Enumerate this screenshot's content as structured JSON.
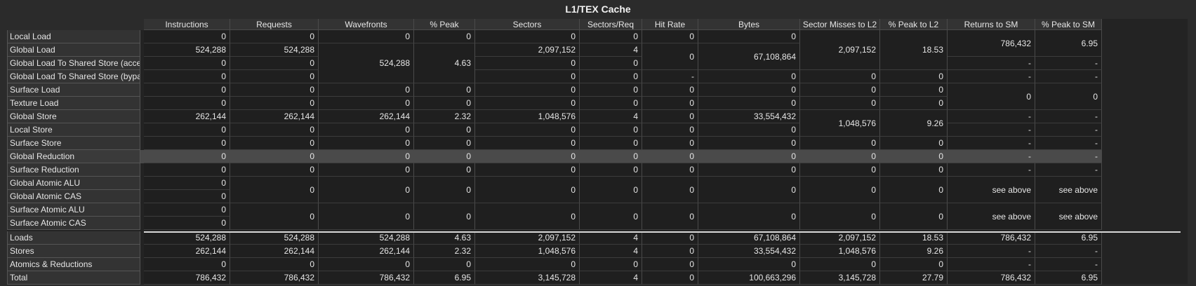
{
  "title": "L1/TEX Cache",
  "headers": [
    "Instructions",
    "Requests",
    "Wavefronts",
    "% Peak",
    "Sectors",
    "Sectors/Req",
    "Hit Rate",
    "Bytes",
    "Sector Misses to L2",
    "% Peak to L2",
    "Returns to SM",
    "% Peak to SM"
  ],
  "row_labels": [
    "Local Load",
    "Global Load",
    "Global Load To Shared Store (access)",
    "Global Load To Shared Store (bypass)",
    "Surface Load",
    "Texture Load",
    "Global Store",
    "Local Store",
    "Surface Store",
    "Global Reduction",
    "Surface Reduction",
    "Global Atomic ALU",
    "Global Atomic CAS",
    "Surface Atomic ALU",
    "Surface Atomic CAS",
    "Loads",
    "Stores",
    "Atomics & Reductions",
    "Total"
  ],
  "cells": [
    {
      "c": 0,
      "r": 0,
      "s": 1,
      "v": "0"
    },
    {
      "c": 0,
      "r": 1,
      "s": 1,
      "v": "524,288"
    },
    {
      "c": 0,
      "r": 2,
      "s": 1,
      "v": "0"
    },
    {
      "c": 0,
      "r": 3,
      "s": 1,
      "v": "0"
    },
    {
      "c": 0,
      "r": 4,
      "s": 1,
      "v": "0"
    },
    {
      "c": 0,
      "r": 5,
      "s": 1,
      "v": "0"
    },
    {
      "c": 0,
      "r": 6,
      "s": 1,
      "v": "262,144"
    },
    {
      "c": 0,
      "r": 7,
      "s": 1,
      "v": "0"
    },
    {
      "c": 0,
      "r": 8,
      "s": 1,
      "v": "0"
    },
    {
      "c": 0,
      "r": 9,
      "s": 1,
      "v": "0"
    },
    {
      "c": 0,
      "r": 10,
      "s": 1,
      "v": "0"
    },
    {
      "c": 0,
      "r": 11,
      "s": 1,
      "v": "0"
    },
    {
      "c": 0,
      "r": 12,
      "s": 1,
      "v": "0"
    },
    {
      "c": 0,
      "r": 13,
      "s": 1,
      "v": "0"
    },
    {
      "c": 0,
      "r": 14,
      "s": 1,
      "v": "0"
    },
    {
      "c": 0,
      "r": 15,
      "s": 1,
      "v": "524,288"
    },
    {
      "c": 0,
      "r": 16,
      "s": 1,
      "v": "262,144"
    },
    {
      "c": 0,
      "r": 17,
      "s": 1,
      "v": "0"
    },
    {
      "c": 0,
      "r": 18,
      "s": 1,
      "v": "786,432"
    },
    {
      "c": 1,
      "r": 0,
      "s": 1,
      "v": "0"
    },
    {
      "c": 1,
      "r": 1,
      "s": 1,
      "v": "524,288"
    },
    {
      "c": 1,
      "r": 2,
      "s": 1,
      "v": "0"
    },
    {
      "c": 1,
      "r": 3,
      "s": 1,
      "v": "0"
    },
    {
      "c": 1,
      "r": 4,
      "s": 1,
      "v": "0"
    },
    {
      "c": 1,
      "r": 5,
      "s": 1,
      "v": "0"
    },
    {
      "c": 1,
      "r": 6,
      "s": 1,
      "v": "262,144"
    },
    {
      "c": 1,
      "r": 7,
      "s": 1,
      "v": "0"
    },
    {
      "c": 1,
      "r": 8,
      "s": 1,
      "v": "0"
    },
    {
      "c": 1,
      "r": 9,
      "s": 1,
      "v": "0"
    },
    {
      "c": 1,
      "r": 10,
      "s": 1,
      "v": "0"
    },
    {
      "c": 1,
      "r": 11,
      "s": 2,
      "v": "0"
    },
    {
      "c": 1,
      "r": 13,
      "s": 2,
      "v": "0"
    },
    {
      "c": 1,
      "r": 15,
      "s": 1,
      "v": "524,288"
    },
    {
      "c": 1,
      "r": 16,
      "s": 1,
      "v": "262,144"
    },
    {
      "c": 1,
      "r": 17,
      "s": 1,
      "v": "0"
    },
    {
      "c": 1,
      "r": 18,
      "s": 1,
      "v": "786,432"
    },
    {
      "c": 2,
      "r": 0,
      "s": 1,
      "v": "0"
    },
    {
      "c": 2,
      "r": 1,
      "s": 3,
      "v": "524,288"
    },
    {
      "c": 2,
      "r": 4,
      "s": 1,
      "v": "0"
    },
    {
      "c": 2,
      "r": 5,
      "s": 1,
      "v": "0"
    },
    {
      "c": 2,
      "r": 6,
      "s": 1,
      "v": "262,144"
    },
    {
      "c": 2,
      "r": 7,
      "s": 1,
      "v": "0"
    },
    {
      "c": 2,
      "r": 8,
      "s": 1,
      "v": "0"
    },
    {
      "c": 2,
      "r": 9,
      "s": 1,
      "v": "0"
    },
    {
      "c": 2,
      "r": 10,
      "s": 1,
      "v": "0"
    },
    {
      "c": 2,
      "r": 11,
      "s": 2,
      "v": "0"
    },
    {
      "c": 2,
      "r": 13,
      "s": 2,
      "v": "0"
    },
    {
      "c": 2,
      "r": 15,
      "s": 1,
      "v": "524,288"
    },
    {
      "c": 2,
      "r": 16,
      "s": 1,
      "v": "262,144"
    },
    {
      "c": 2,
      "r": 17,
      "s": 1,
      "v": "0"
    },
    {
      "c": 2,
      "r": 18,
      "s": 1,
      "v": "786,432"
    },
    {
      "c": 3,
      "r": 0,
      "s": 1,
      "v": "0"
    },
    {
      "c": 3,
      "r": 1,
      "s": 3,
      "v": "4.63"
    },
    {
      "c": 3,
      "r": 4,
      "s": 1,
      "v": "0"
    },
    {
      "c": 3,
      "r": 5,
      "s": 1,
      "v": "0"
    },
    {
      "c": 3,
      "r": 6,
      "s": 1,
      "v": "2.32"
    },
    {
      "c": 3,
      "r": 7,
      "s": 1,
      "v": "0"
    },
    {
      "c": 3,
      "r": 8,
      "s": 1,
      "v": "0"
    },
    {
      "c": 3,
      "r": 9,
      "s": 1,
      "v": "0"
    },
    {
      "c": 3,
      "r": 10,
      "s": 1,
      "v": "0"
    },
    {
      "c": 3,
      "r": 11,
      "s": 2,
      "v": "0"
    },
    {
      "c": 3,
      "r": 13,
      "s": 2,
      "v": "0"
    },
    {
      "c": 3,
      "r": 15,
      "s": 1,
      "v": "4.63"
    },
    {
      "c": 3,
      "r": 16,
      "s": 1,
      "v": "2.32"
    },
    {
      "c": 3,
      "r": 17,
      "s": 1,
      "v": "0"
    },
    {
      "c": 3,
      "r": 18,
      "s": 1,
      "v": "6.95"
    },
    {
      "c": 4,
      "r": 0,
      "s": 1,
      "v": "0"
    },
    {
      "c": 4,
      "r": 1,
      "s": 1,
      "v": "2,097,152"
    },
    {
      "c": 4,
      "r": 2,
      "s": 1,
      "v": "0"
    },
    {
      "c": 4,
      "r": 3,
      "s": 1,
      "v": "0"
    },
    {
      "c": 4,
      "r": 4,
      "s": 1,
      "v": "0"
    },
    {
      "c": 4,
      "r": 5,
      "s": 1,
      "v": "0"
    },
    {
      "c": 4,
      "r": 6,
      "s": 1,
      "v": "1,048,576"
    },
    {
      "c": 4,
      "r": 7,
      "s": 1,
      "v": "0"
    },
    {
      "c": 4,
      "r": 8,
      "s": 1,
      "v": "0"
    },
    {
      "c": 4,
      "r": 9,
      "s": 1,
      "v": "0"
    },
    {
      "c": 4,
      "r": 10,
      "s": 1,
      "v": "0"
    },
    {
      "c": 4,
      "r": 11,
      "s": 2,
      "v": "0"
    },
    {
      "c": 4,
      "r": 13,
      "s": 2,
      "v": "0"
    },
    {
      "c": 4,
      "r": 15,
      "s": 1,
      "v": "2,097,152"
    },
    {
      "c": 4,
      "r": 16,
      "s": 1,
      "v": "1,048,576"
    },
    {
      "c": 4,
      "r": 17,
      "s": 1,
      "v": "0"
    },
    {
      "c": 4,
      "r": 18,
      "s": 1,
      "v": "3,145,728"
    },
    {
      "c": 5,
      "r": 0,
      "s": 1,
      "v": "0"
    },
    {
      "c": 5,
      "r": 1,
      "s": 1,
      "v": "4"
    },
    {
      "c": 5,
      "r": 2,
      "s": 1,
      "v": "0"
    },
    {
      "c": 5,
      "r": 3,
      "s": 1,
      "v": "0"
    },
    {
      "c": 5,
      "r": 4,
      "s": 1,
      "v": "0"
    },
    {
      "c": 5,
      "r": 5,
      "s": 1,
      "v": "0"
    },
    {
      "c": 5,
      "r": 6,
      "s": 1,
      "v": "4"
    },
    {
      "c": 5,
      "r": 7,
      "s": 1,
      "v": "0"
    },
    {
      "c": 5,
      "r": 8,
      "s": 1,
      "v": "0"
    },
    {
      "c": 5,
      "r": 9,
      "s": 1,
      "v": "0"
    },
    {
      "c": 5,
      "r": 10,
      "s": 1,
      "v": "0"
    },
    {
      "c": 5,
      "r": 11,
      "s": 2,
      "v": "0"
    },
    {
      "c": 5,
      "r": 13,
      "s": 2,
      "v": "0"
    },
    {
      "c": 5,
      "r": 15,
      "s": 1,
      "v": "4"
    },
    {
      "c": 5,
      "r": 16,
      "s": 1,
      "v": "4"
    },
    {
      "c": 5,
      "r": 17,
      "s": 1,
      "v": "0"
    },
    {
      "c": 5,
      "r": 18,
      "s": 1,
      "v": "4"
    },
    {
      "c": 6,
      "r": 0,
      "s": 1,
      "v": "0"
    },
    {
      "c": 6,
      "r": 1,
      "s": 2,
      "v": "0"
    },
    {
      "c": 6,
      "r": 3,
      "s": 1,
      "v": "-"
    },
    {
      "c": 6,
      "r": 4,
      "s": 1,
      "v": "0"
    },
    {
      "c": 6,
      "r": 5,
      "s": 1,
      "v": "0"
    },
    {
      "c": 6,
      "r": 6,
      "s": 1,
      "v": "0"
    },
    {
      "c": 6,
      "r": 7,
      "s": 1,
      "v": "0"
    },
    {
      "c": 6,
      "r": 8,
      "s": 1,
      "v": "0"
    },
    {
      "c": 6,
      "r": 9,
      "s": 1,
      "v": "0"
    },
    {
      "c": 6,
      "r": 10,
      "s": 1,
      "v": "0"
    },
    {
      "c": 6,
      "r": 11,
      "s": 2,
      "v": "0"
    },
    {
      "c": 6,
      "r": 13,
      "s": 2,
      "v": "0"
    },
    {
      "c": 6,
      "r": 15,
      "s": 1,
      "v": "0"
    },
    {
      "c": 6,
      "r": 16,
      "s": 1,
      "v": "0"
    },
    {
      "c": 6,
      "r": 17,
      "s": 1,
      "v": "0"
    },
    {
      "c": 6,
      "r": 18,
      "s": 1,
      "v": "0"
    },
    {
      "c": 7,
      "r": 0,
      "s": 1,
      "v": "0"
    },
    {
      "c": 7,
      "r": 1,
      "s": 2,
      "v": "67,108,864"
    },
    {
      "c": 7,
      "r": 3,
      "s": 1,
      "v": "0"
    },
    {
      "c": 7,
      "r": 4,
      "s": 1,
      "v": "0"
    },
    {
      "c": 7,
      "r": 5,
      "s": 1,
      "v": "0"
    },
    {
      "c": 7,
      "r": 6,
      "s": 1,
      "v": "33,554,432"
    },
    {
      "c": 7,
      "r": 7,
      "s": 1,
      "v": "0"
    },
    {
      "c": 7,
      "r": 8,
      "s": 1,
      "v": "0"
    },
    {
      "c": 7,
      "r": 9,
      "s": 1,
      "v": "0"
    },
    {
      "c": 7,
      "r": 10,
      "s": 1,
      "v": "0"
    },
    {
      "c": 7,
      "r": 11,
      "s": 2,
      "v": "0"
    },
    {
      "c": 7,
      "r": 13,
      "s": 2,
      "v": "0"
    },
    {
      "c": 7,
      "r": 15,
      "s": 1,
      "v": "67,108,864"
    },
    {
      "c": 7,
      "r": 16,
      "s": 1,
      "v": "33,554,432"
    },
    {
      "c": 7,
      "r": 17,
      "s": 1,
      "v": "0"
    },
    {
      "c": 7,
      "r": 18,
      "s": 1,
      "v": "100,663,296"
    },
    {
      "c": 8,
      "r": 0,
      "s": 3,
      "v": "2,097,152"
    },
    {
      "c": 8,
      "r": 3,
      "s": 1,
      "v": "0"
    },
    {
      "c": 8,
      "r": 4,
      "s": 1,
      "v": "0"
    },
    {
      "c": 8,
      "r": 5,
      "s": 1,
      "v": "0"
    },
    {
      "c": 8,
      "r": 6,
      "s": 2,
      "v": "1,048,576"
    },
    {
      "c": 8,
      "r": 8,
      "s": 1,
      "v": "0"
    },
    {
      "c": 8,
      "r": 9,
      "s": 1,
      "v": "0"
    },
    {
      "c": 8,
      "r": 10,
      "s": 1,
      "v": "0"
    },
    {
      "c": 8,
      "r": 11,
      "s": 2,
      "v": "0"
    },
    {
      "c": 8,
      "r": 13,
      "s": 2,
      "v": "0"
    },
    {
      "c": 8,
      "r": 15,
      "s": 1,
      "v": "2,097,152"
    },
    {
      "c": 8,
      "r": 16,
      "s": 1,
      "v": "1,048,576"
    },
    {
      "c": 8,
      "r": 17,
      "s": 1,
      "v": "0"
    },
    {
      "c": 8,
      "r": 18,
      "s": 1,
      "v": "3,145,728"
    },
    {
      "c": 9,
      "r": 0,
      "s": 3,
      "v": "18.53"
    },
    {
      "c": 9,
      "r": 3,
      "s": 1,
      "v": "0"
    },
    {
      "c": 9,
      "r": 4,
      "s": 1,
      "v": "0"
    },
    {
      "c": 9,
      "r": 5,
      "s": 1,
      "v": "0"
    },
    {
      "c": 9,
      "r": 6,
      "s": 2,
      "v": "9.26"
    },
    {
      "c": 9,
      "r": 8,
      "s": 1,
      "v": "0"
    },
    {
      "c": 9,
      "r": 9,
      "s": 1,
      "v": "0"
    },
    {
      "c": 9,
      "r": 10,
      "s": 1,
      "v": "0"
    },
    {
      "c": 9,
      "r": 11,
      "s": 2,
      "v": "0"
    },
    {
      "c": 9,
      "r": 13,
      "s": 2,
      "v": "0"
    },
    {
      "c": 9,
      "r": 15,
      "s": 1,
      "v": "18.53"
    },
    {
      "c": 9,
      "r": 16,
      "s": 1,
      "v": "9.26"
    },
    {
      "c": 9,
      "r": 17,
      "s": 1,
      "v": "0"
    },
    {
      "c": 9,
      "r": 18,
      "s": 1,
      "v": "27.79"
    },
    {
      "c": 10,
      "r": 0,
      "s": 2,
      "v": "786,432"
    },
    {
      "c": 10,
      "r": 2,
      "s": 1,
      "v": "-"
    },
    {
      "c": 10,
      "r": 3,
      "s": 1,
      "v": "-"
    },
    {
      "c": 10,
      "r": 4,
      "s": 2,
      "v": "0"
    },
    {
      "c": 10,
      "r": 6,
      "s": 1,
      "v": "-"
    },
    {
      "c": 10,
      "r": 7,
      "s": 1,
      "v": "-"
    },
    {
      "c": 10,
      "r": 8,
      "s": 1,
      "v": "-"
    },
    {
      "c": 10,
      "r": 9,
      "s": 1,
      "v": "-"
    },
    {
      "c": 10,
      "r": 10,
      "s": 1,
      "v": "-"
    },
    {
      "c": 10,
      "r": 11,
      "s": 2,
      "v": "see above"
    },
    {
      "c": 10,
      "r": 13,
      "s": 2,
      "v": "see above"
    },
    {
      "c": 10,
      "r": 15,
      "s": 1,
      "v": "786,432"
    },
    {
      "c": 10,
      "r": 16,
      "s": 1,
      "v": "-"
    },
    {
      "c": 10,
      "r": 17,
      "s": 1,
      "v": "-"
    },
    {
      "c": 10,
      "r": 18,
      "s": 1,
      "v": "786,432"
    },
    {
      "c": 11,
      "r": 0,
      "s": 2,
      "v": "6.95"
    },
    {
      "c": 11,
      "r": 2,
      "s": 1,
      "v": "-"
    },
    {
      "c": 11,
      "r": 3,
      "s": 1,
      "v": "-"
    },
    {
      "c": 11,
      "r": 4,
      "s": 2,
      "v": "0"
    },
    {
      "c": 11,
      "r": 6,
      "s": 1,
      "v": "-"
    },
    {
      "c": 11,
      "r": 7,
      "s": 1,
      "v": "-"
    },
    {
      "c": 11,
      "r": 8,
      "s": 1,
      "v": "-"
    },
    {
      "c": 11,
      "r": 9,
      "s": 1,
      "v": "-"
    },
    {
      "c": 11,
      "r": 10,
      "s": 1,
      "v": "-"
    },
    {
      "c": 11,
      "r": 11,
      "s": 2,
      "v": "see above"
    },
    {
      "c": 11,
      "r": 13,
      "s": 2,
      "v": "see above"
    },
    {
      "c": 11,
      "r": 15,
      "s": 1,
      "v": "6.95"
    },
    {
      "c": 11,
      "r": 16,
      "s": 1,
      "v": "-"
    },
    {
      "c": 11,
      "r": 17,
      "s": 1,
      "v": "-"
    },
    {
      "c": 11,
      "r": 18,
      "s": 1,
      "v": "6.95"
    }
  ],
  "colors": {
    "header_bg": "#333333",
    "cell_bg": "#1f1f1f",
    "highlight": "#4a4a4a"
  }
}
